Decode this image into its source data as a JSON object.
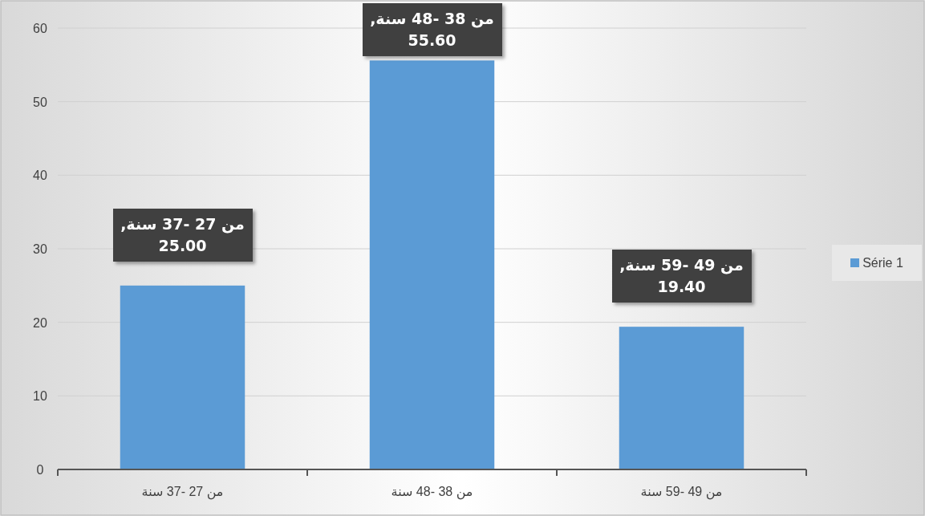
{
  "chart_data": {
    "type": "bar",
    "categories": [
      "من 27 -37 سنة",
      "من 38 -48 سنة",
      "من 49 -59 سنة"
    ],
    "series": [
      {
        "name": "Série 1",
        "color": "#5b9bd5",
        "values": [
          25.0,
          55.6,
          19.4
        ],
        "value_labels": [
          "من 27 -37 سنة, 25.00",
          "من 38 -48 سنة, 55.60",
          "من 49 -59 سنة, 19.40"
        ]
      }
    ],
    "ylim": [
      0,
      60
    ],
    "yticks": [
      0,
      10,
      20,
      30,
      40,
      50,
      60
    ],
    "grid": "y",
    "legend": "right"
  }
}
